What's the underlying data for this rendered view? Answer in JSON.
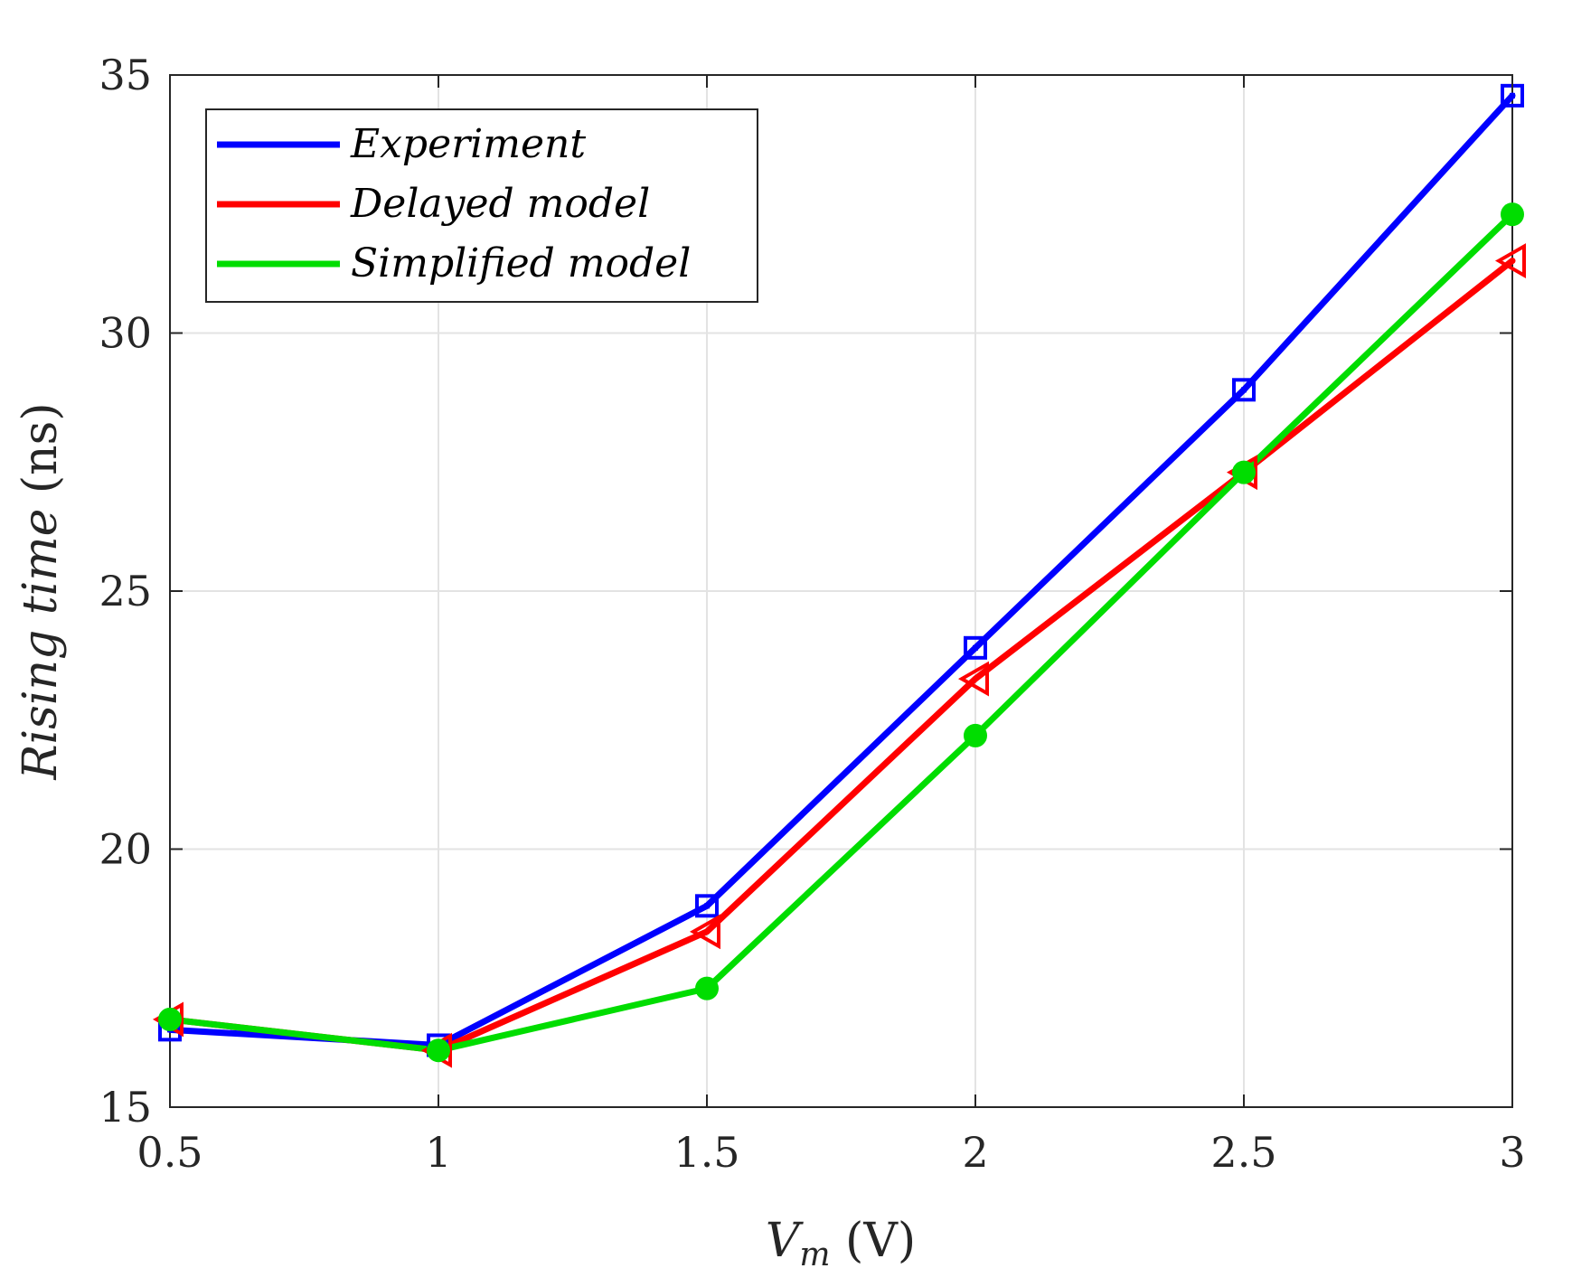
{
  "chart_data": {
    "type": "line",
    "title": "",
    "xlabel_main": "V",
    "xlabel_sub": "m",
    "xlabel_unit": " (V)",
    "ylabel_italic": "Rising time",
    "ylabel_unit": " (ns)",
    "x": [
      0.5,
      1,
      1.5,
      2,
      2.5,
      3
    ],
    "xlim": [
      0.5,
      3
    ],
    "ylim": [
      15,
      35
    ],
    "xticks": [
      0.5,
      1,
      1.5,
      2,
      2.5,
      3
    ],
    "xtick_labels": [
      "0.5",
      "1",
      "1.5",
      "2",
      "2.5",
      "3"
    ],
    "yticks": [
      15,
      20,
      25,
      30,
      35
    ],
    "ytick_labels": [
      "15",
      "20",
      "25",
      "30",
      "35"
    ],
    "grid": true,
    "legend_position": "top-left",
    "series": [
      {
        "name": "Experiment",
        "color": "#0000ff",
        "marker": "square",
        "values": [
          16.5,
          16.2,
          18.9,
          23.9,
          28.9,
          34.6
        ]
      },
      {
        "name": "Delayed model",
        "color": "#ff0000",
        "marker": "triangle-left",
        "values": [
          16.7,
          16.1,
          18.4,
          23.3,
          27.3,
          31.4
        ]
      },
      {
        "name": "Simplified model",
        "color": "#00dd00",
        "marker": "circle",
        "values": [
          16.7,
          16.1,
          17.3,
          22.2,
          27.3,
          32.3
        ]
      }
    ]
  }
}
